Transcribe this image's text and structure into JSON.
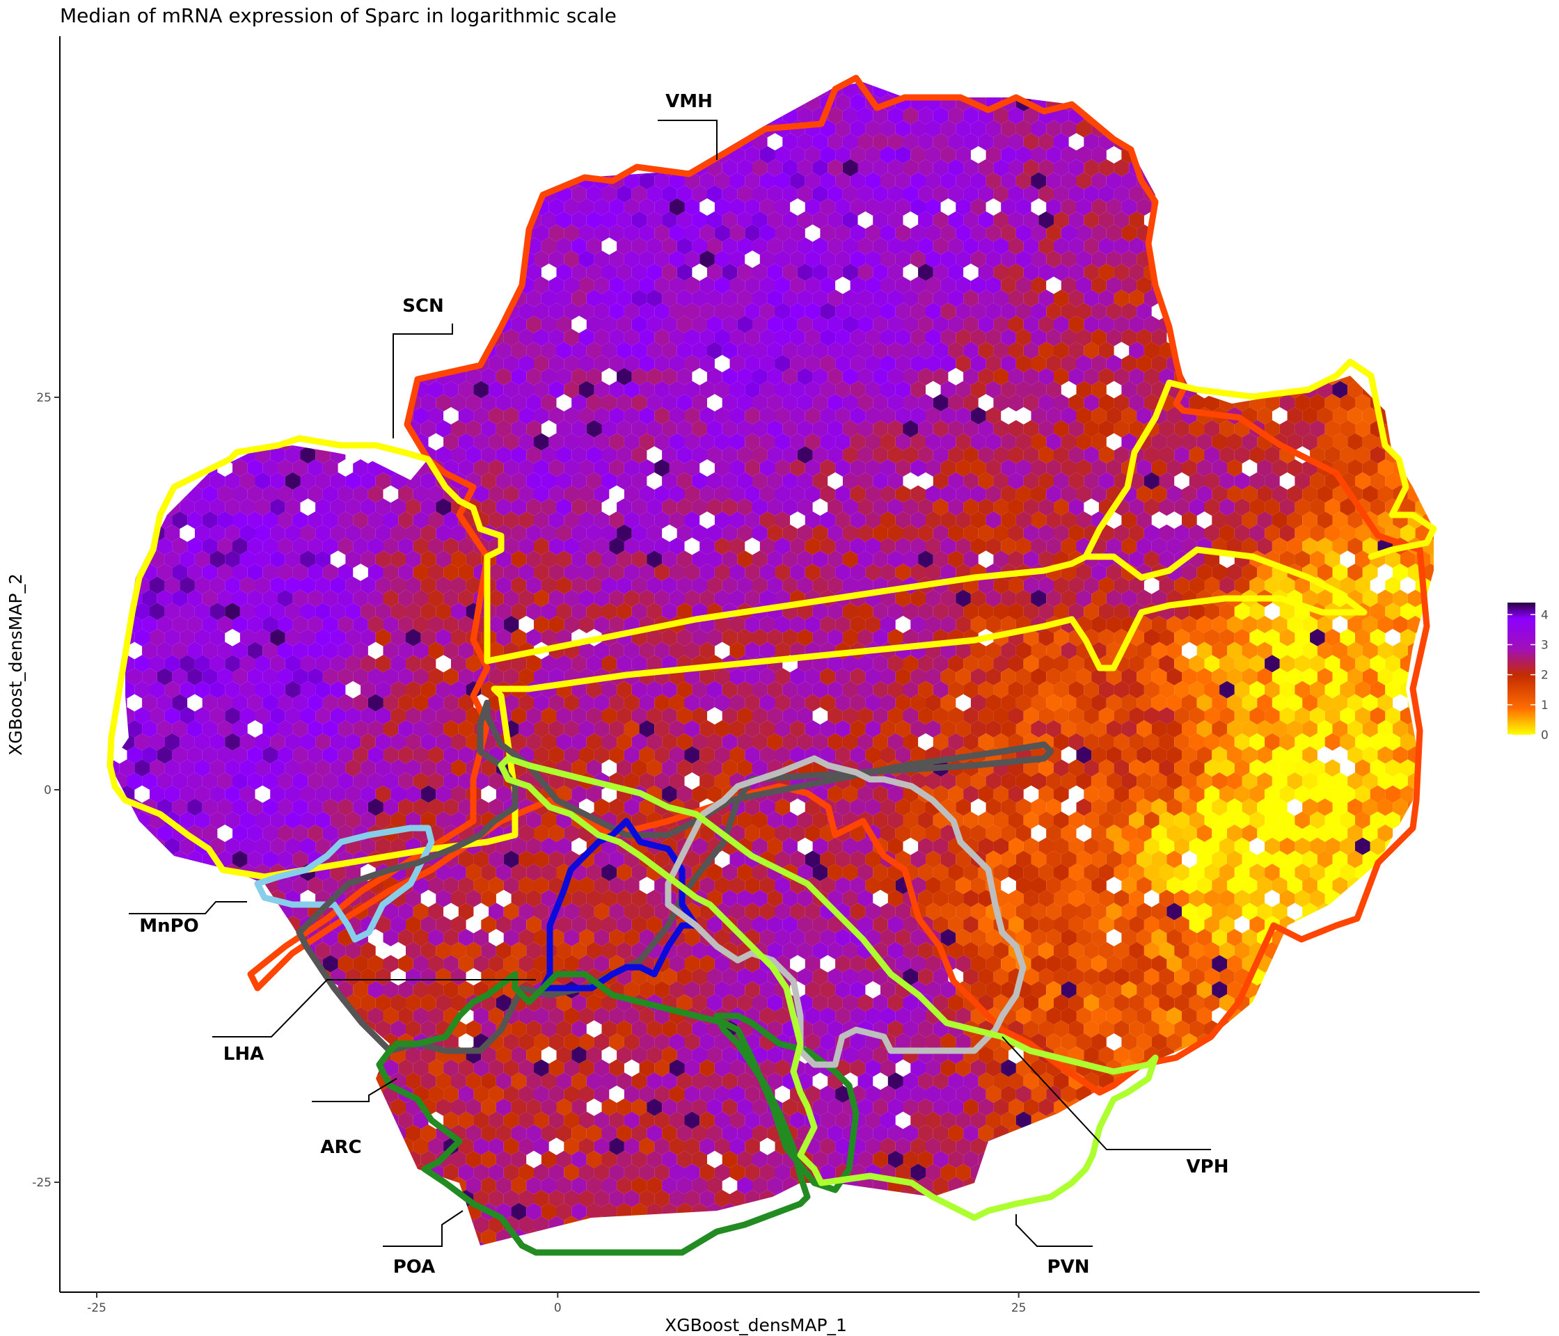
{
  "chart_data": {
    "type": "heatmap",
    "title": "Median of mRNA expression of Sparc in logarithmic scale",
    "xlabel": "XGBoost_densMAP_1",
    "ylabel": "XGBoost_densMAP_2",
    "xticks": [
      "-25",
      "0",
      "25"
    ],
    "yticks": [
      "25",
      "0",
      "-25"
    ],
    "xtick_values": [
      -25,
      0,
      25
    ],
    "ytick_values": [
      25,
      0,
      -25
    ],
    "xlim": [
      -27,
      50
    ],
    "ylim": [
      -32,
      48
    ],
    "grid": false,
    "legend_position": "right",
    "colorbar": {
      "ticks": [
        "4",
        "3",
        "2",
        "1",
        "0"
      ],
      "tick_values": [
        4,
        3,
        2,
        1,
        0
      ],
      "range": [
        0,
        4.4
      ],
      "colors": [
        "#FFFF00",
        "#FF6D00",
        "#C42C00",
        "#A010B8",
        "#8C00FF",
        "#2A0040"
      ]
    },
    "regions": [
      {
        "name": "VMH",
        "color": "#FF4500"
      },
      {
        "name": "SCN",
        "color": "#FFFF00"
      },
      {
        "name": "MnPO",
        "color": "#87CEEB"
      },
      {
        "name": "LHA",
        "color": "#555555"
      },
      {
        "name": "ARC",
        "color": "#0A0ADC"
      },
      {
        "name": "POA",
        "color": "#228B22"
      },
      {
        "name": "VPH",
        "color": "#BEBEBE"
      },
      {
        "name": "PVN",
        "color": "#ADFF2F"
      }
    ],
    "expression_zones": [
      {
        "zone": "upper-center",
        "median_log_expression": 3.4
      },
      {
        "zone": "left-lobe",
        "median_log_expression": 3.6
      },
      {
        "zone": "center",
        "median_log_expression": 2.6
      },
      {
        "zone": "lower-center",
        "median_log_expression": 2.2
      },
      {
        "zone": "right-lobe",
        "median_log_expression": 1.0
      },
      {
        "zone": "far-right",
        "median_log_expression": 0.1
      }
    ]
  }
}
